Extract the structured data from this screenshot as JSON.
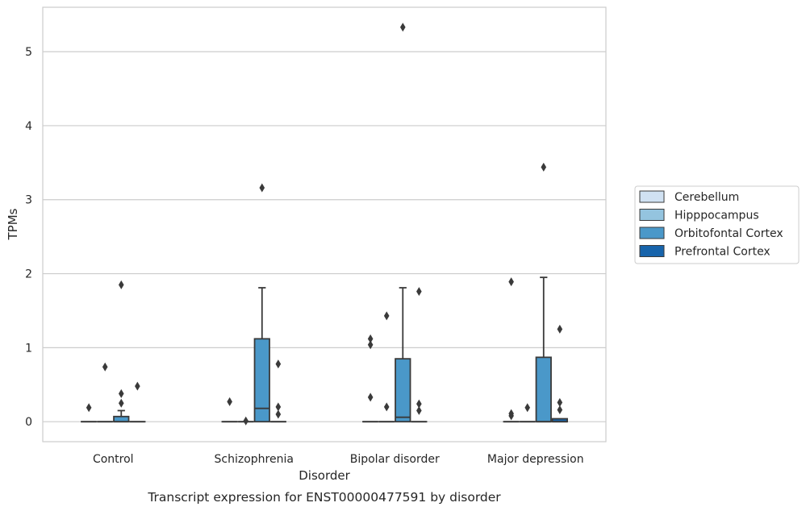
{
  "chart_data": {
    "type": "box",
    "title": "",
    "caption": "Transcript expression for ENST00000477591 by disorder",
    "xlabel": "Disorder",
    "ylabel": "TPMs",
    "ylim": [
      -0.27,
      5.6
    ],
    "yticks": [
      0,
      1,
      2,
      3,
      4,
      5
    ],
    "grid": true,
    "legend_position": "right",
    "categories": [
      "Control",
      "Schizophrenia",
      "Bipolar disorder",
      "Major depression"
    ],
    "series": [
      {
        "name": "Cerebellum",
        "color": "#d0e1f2",
        "boxes": [
          {
            "q1": 0,
            "median": 0,
            "q3": 0,
            "whisker_low": 0,
            "whisker_high": 0,
            "outliers": [
              0.19
            ]
          },
          {
            "q1": 0,
            "median": 0,
            "q3": 0,
            "whisker_low": 0,
            "whisker_high": 0,
            "outliers": [
              0.27
            ]
          },
          {
            "q1": 0,
            "median": 0,
            "q3": 0,
            "whisker_low": 0,
            "whisker_high": 0,
            "outliers": [
              0.33,
              1.04,
              1.12
            ]
          },
          {
            "q1": 0,
            "median": 0,
            "q3": 0,
            "whisker_low": 0,
            "whisker_high": 0,
            "outliers": [
              0.08,
              0.11,
              1.89
            ]
          }
        ]
      },
      {
        "name": "Hipppocampus",
        "color": "#94c4df",
        "boxes": [
          {
            "q1": 0,
            "median": 0,
            "q3": 0,
            "whisker_low": 0,
            "whisker_high": 0,
            "outliers": [
              0.74
            ]
          },
          {
            "q1": 0,
            "median": 0,
            "q3": 0,
            "whisker_low": 0,
            "whisker_high": 0,
            "outliers": [
              0.01
            ]
          },
          {
            "q1": 0,
            "median": 0,
            "q3": 0,
            "whisker_low": 0,
            "whisker_high": 0,
            "outliers": [
              0.2,
              1.43
            ]
          },
          {
            "q1": 0,
            "median": 0,
            "q3": 0,
            "whisker_low": 0,
            "whisker_high": 0,
            "outliers": [
              0.19
            ]
          }
        ]
      },
      {
        "name": "Orbitofontal Cortex",
        "color": "#4a98c9",
        "boxes": [
          {
            "q1": 0,
            "median": 0,
            "q3": 0.07,
            "whisker_low": 0,
            "whisker_high": 0.15,
            "outliers": [
              0.25,
              0.38,
              1.85
            ]
          },
          {
            "q1": 0,
            "median": 0.18,
            "q3": 1.12,
            "whisker_low": 0,
            "whisker_high": 1.81,
            "outliers": [
              3.16
            ]
          },
          {
            "q1": 0,
            "median": 0.06,
            "q3": 0.85,
            "whisker_low": 0,
            "whisker_high": 1.81,
            "outliers": [
              5.33
            ]
          },
          {
            "q1": 0,
            "median": 0,
            "q3": 0.87,
            "whisker_low": 0,
            "whisker_high": 1.95,
            "outliers": [
              3.44
            ]
          }
        ]
      },
      {
        "name": "Prefrontal Cortex",
        "color": "#1764ab",
        "boxes": [
          {
            "q1": 0,
            "median": 0,
            "q3": 0,
            "whisker_low": 0,
            "whisker_high": 0,
            "outliers": [
              0.48
            ]
          },
          {
            "q1": 0,
            "median": 0,
            "q3": 0,
            "whisker_low": 0,
            "whisker_high": 0,
            "outliers": [
              0.1,
              0.2,
              0.78
            ]
          },
          {
            "q1": 0,
            "median": 0,
            "q3": 0,
            "whisker_low": 0,
            "whisker_high": 0,
            "outliers": [
              0.15,
              0.24,
              1.76
            ]
          },
          {
            "q1": 0,
            "median": 0,
            "q3": 0.04,
            "whisker_low": 0,
            "whisker_high": 0.04,
            "outliers": [
              0.16,
              0.26,
              1.25
            ]
          }
        ]
      }
    ]
  }
}
